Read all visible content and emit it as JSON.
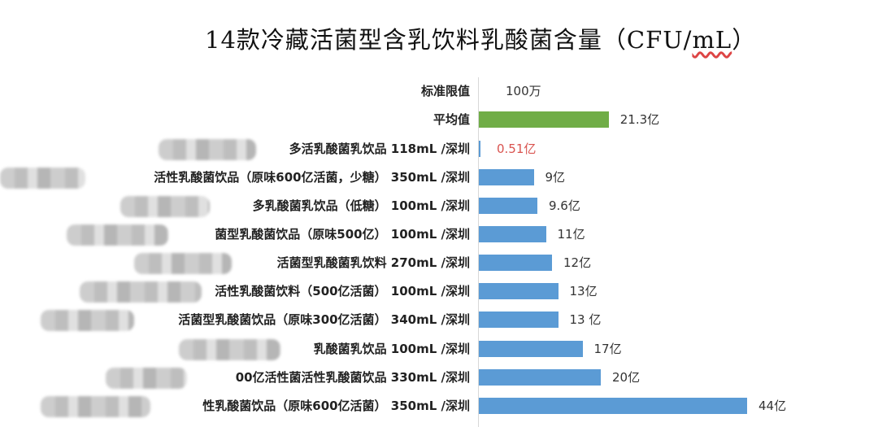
{
  "chart_data": {
    "type": "bar",
    "orientation": "horizontal",
    "title": "14款冷藏活菌型含乳饮料乳酸菌含量（CFU/mL）",
    "xlabel": "",
    "ylabel": "",
    "unit": "亿 CFU/mL",
    "grid": false,
    "legend": null,
    "colors": {
      "average": "#70ad47",
      "products": "#5b9bd5",
      "highlight_label": "#d9534f"
    },
    "categories": [
      "标准限值",
      "平均值",
      "…多活乳酸菌乳饮品 118mL /深圳",
      "…活性乳酸菌饮品（原味600亿活菌，少糖） 350mL /深圳",
      "…多乳酸菌乳饮品（低糖） 100mL /深圳",
      "…菌型乳酸菌饮品（原味500亿） 100mL /深圳",
      "…活菌型乳酸菌乳饮料 270mL /深圳",
      "…活性乳酸菌饮料（500亿活菌） 100mL /深圳",
      "…活菌型乳酸菌饮品（原味300亿活菌） 340mL /深圳",
      "…乳酸菌乳饮品 100mL /深圳",
      "…00亿活性菌活性乳酸菌饮品 330mL /深圳",
      "…性乳酸菌饮品（原味600亿活菌） 350mL /深圳"
    ],
    "values": [
      0.01,
      21.3,
      0.51,
      9,
      9.6,
      11,
      12,
      13,
      13,
      17,
      20,
      44
    ],
    "value_labels": [
      "100万",
      "21.3亿",
      "0.51亿",
      "9亿",
      "9.6亿",
      "11亿",
      "12亿",
      "13亿",
      "13 亿",
      "17亿",
      "20亿",
      "44亿"
    ],
    "xlim": [
      0,
      50
    ]
  },
  "title": {
    "main": "14款冷藏活菌型含乳饮料乳酸菌含量（CFU/",
    "unit": "mL",
    "close": "）"
  },
  "rows": [
    {
      "label": "标准限值",
      "value_label": "100万"
    },
    {
      "label": "平均值",
      "value_label": "21.3亿"
    },
    {
      "label": "多活乳酸菌乳饮品 118mL /深圳",
      "value_label": "0.51亿"
    },
    {
      "label": "活性乳酸菌饮品（原味600亿活菌，少糖） 350mL /深圳",
      "value_label": "9亿"
    },
    {
      "label": "多乳酸菌乳饮品（低糖） 100mL /深圳",
      "value_label": "9.6亿"
    },
    {
      "label": "菌型乳酸菌饮品（原味500亿） 100mL /深圳",
      "value_label": "11亿"
    },
    {
      "label": "活菌型乳酸菌乳饮料 270mL /深圳",
      "value_label": "12亿"
    },
    {
      "label": "活性乳酸菌饮料（500亿活菌） 100mL /深圳",
      "value_label": "13亿"
    },
    {
      "label": "活菌型乳酸菌饮品（原味300亿活菌） 340mL /深圳",
      "value_label": "13 亿"
    },
    {
      "label": "乳酸菌乳饮品 100mL /深圳",
      "value_label": "17亿"
    },
    {
      "label": "00亿活性菌活性乳酸菌饮品 330mL /深圳",
      "value_label": "20亿"
    },
    {
      "label": "性乳酸菌饮品（原味600亿活菌） 350mL /深圳",
      "value_label": "44亿"
    }
  ]
}
